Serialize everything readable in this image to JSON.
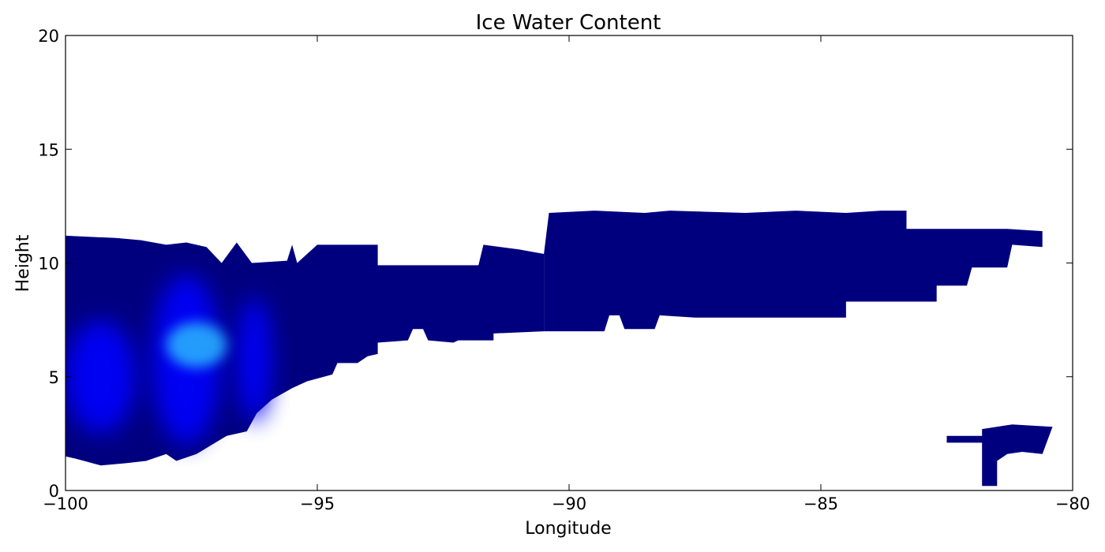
{
  "chart_data": {
    "type": "heatmap",
    "title": "Ice Water Content",
    "xlabel": "Longitude",
    "ylabel": "Height",
    "xlim": [
      -100,
      -80
    ],
    "ylim": [
      0,
      20
    ],
    "xticks": [
      -100,
      -95,
      -90,
      -85,
      -80
    ],
    "yticks": [
      0,
      5,
      10,
      15,
      20
    ],
    "xtick_labels": [
      "−100",
      "−95",
      "−90",
      "−85",
      "−80"
    ],
    "ytick_labels": [
      "0",
      "5",
      "10",
      "15",
      "20"
    ],
    "grid": false,
    "legend": "none",
    "colors": {
      "background_cloud": "#00007f",
      "medium": "#0000ff",
      "high": "#1f8fff",
      "peak": "#29b8ff"
    },
    "regions": [
      {
        "name": "main-cloud-west",
        "level": "background",
        "top": [
          [
            -100,
            11.2
          ],
          [
            -99.0,
            11.1
          ],
          [
            -98.5,
            11.0
          ],
          [
            -98.0,
            10.8
          ],
          [
            -97.6,
            10.9
          ],
          [
            -97.2,
            10.7
          ],
          [
            -96.9,
            10.0
          ],
          [
            -96.6,
            10.9
          ],
          [
            -96.3,
            10.0
          ],
          [
            -95.6,
            10.1
          ],
          [
            -95.5,
            10.8
          ],
          [
            -95.4,
            10.0
          ],
          [
            -95.0,
            10.8
          ],
          [
            -93.8,
            10.8
          ],
          [
            -93.8,
            9.9
          ],
          [
            -91.8,
            9.9
          ],
          [
            -91.7,
            10.8
          ],
          [
            -91.0,
            10.6
          ],
          [
            -90.5,
            10.4
          ]
        ],
        "bottom": [
          [
            -90.5,
            7.0
          ],
          [
            -91.5,
            6.9
          ],
          [
            -91.5,
            6.6
          ],
          [
            -92.2,
            6.6
          ],
          [
            -92.3,
            6.5
          ],
          [
            -92.8,
            6.6
          ],
          [
            -92.9,
            7.1
          ],
          [
            -93.1,
            7.1
          ],
          [
            -93.2,
            6.6
          ],
          [
            -93.8,
            6.5
          ],
          [
            -93.8,
            6.0
          ],
          [
            -94.0,
            5.9
          ],
          [
            -94.2,
            5.6
          ],
          [
            -94.6,
            5.6
          ],
          [
            -94.7,
            5.1
          ],
          [
            -95.2,
            4.8
          ],
          [
            -95.5,
            4.5
          ],
          [
            -95.9,
            4.0
          ],
          [
            -96.2,
            3.4
          ],
          [
            -96.4,
            2.6
          ],
          [
            -96.8,
            2.4
          ],
          [
            -97.1,
            2.0
          ],
          [
            -97.4,
            1.6
          ],
          [
            -97.8,
            1.3
          ],
          [
            -98.0,
            1.6
          ],
          [
            -98.4,
            1.3
          ],
          [
            -98.8,
            1.2
          ],
          [
            -99.3,
            1.1
          ],
          [
            -99.8,
            1.4
          ],
          [
            -100,
            1.5
          ]
        ]
      },
      {
        "name": "main-cloud-east",
        "level": "background",
        "top": [
          [
            -90.5,
            10.4
          ],
          [
            -90.4,
            12.2
          ],
          [
            -89.5,
            12.3
          ],
          [
            -88.5,
            12.2
          ],
          [
            -88.0,
            12.3
          ],
          [
            -86.5,
            12.2
          ],
          [
            -85.5,
            12.3
          ],
          [
            -84.5,
            12.2
          ],
          [
            -83.8,
            12.3
          ],
          [
            -83.3,
            12.3
          ],
          [
            -83.3,
            11.5
          ],
          [
            -81.3,
            11.5
          ],
          [
            -80.6,
            11.4
          ],
          [
            -80.6,
            10.7
          ],
          [
            -81.2,
            10.8
          ],
          [
            -81.3,
            9.8
          ],
          [
            -82.0,
            9.8
          ],
          [
            -82.1,
            9.0
          ],
          [
            -82.7,
            9.0
          ],
          [
            -82.7,
            8.3
          ],
          [
            -83.8,
            8.3
          ],
          [
            -84.5,
            8.3
          ]
        ],
        "bottom": [
          [
            -84.5,
            8.3
          ],
          [
            -84.5,
            7.6
          ],
          [
            -85.0,
            7.6
          ],
          [
            -86.5,
            7.6
          ],
          [
            -87.5,
            7.6
          ],
          [
            -88.2,
            7.7
          ],
          [
            -88.3,
            7.1
          ],
          [
            -88.9,
            7.1
          ],
          [
            -89.0,
            7.7
          ],
          [
            -89.2,
            7.7
          ],
          [
            -89.3,
            7.0
          ],
          [
            -90.0,
            7.0
          ],
          [
            -90.5,
            7.0
          ]
        ]
      },
      {
        "name": "low-cloud-east",
        "level": "background",
        "top": [
          [
            -82.5,
            2.4
          ],
          [
            -81.8,
            2.4
          ],
          [
            -81.8,
            2.7
          ],
          [
            -81.2,
            2.9
          ],
          [
            -80.4,
            2.8
          ]
        ],
        "bottom": [
          [
            -80.4,
            2.8
          ],
          [
            -80.6,
            1.6
          ],
          [
            -81.0,
            1.7
          ],
          [
            -81.3,
            1.6
          ],
          [
            -81.5,
            1.3
          ],
          [
            -81.5,
            0.2
          ],
          [
            -81.8,
            0.2
          ],
          [
            -81.8,
            2.1
          ],
          [
            -82.5,
            2.1
          ]
        ]
      }
    ],
    "intense_regions": [
      {
        "name": "core-western",
        "level": "medium",
        "lon": [
          -100,
          -98.6
        ],
        "height": [
          2.5,
          7.5
        ]
      },
      {
        "name": "core-central",
        "level": "medium",
        "lon": [
          -98.3,
          -96.9
        ],
        "height": [
          2.0,
          9.5
        ]
      },
      {
        "name": "core-eastern",
        "level": "medium",
        "lon": [
          -96.6,
          -95.9
        ],
        "height": [
          3.0,
          8.5
        ]
      },
      {
        "name": "core-peak",
        "level": "peak",
        "lon": [
          -98.0,
          -96.8
        ],
        "height": [
          5.4,
          7.4
        ]
      }
    ]
  }
}
